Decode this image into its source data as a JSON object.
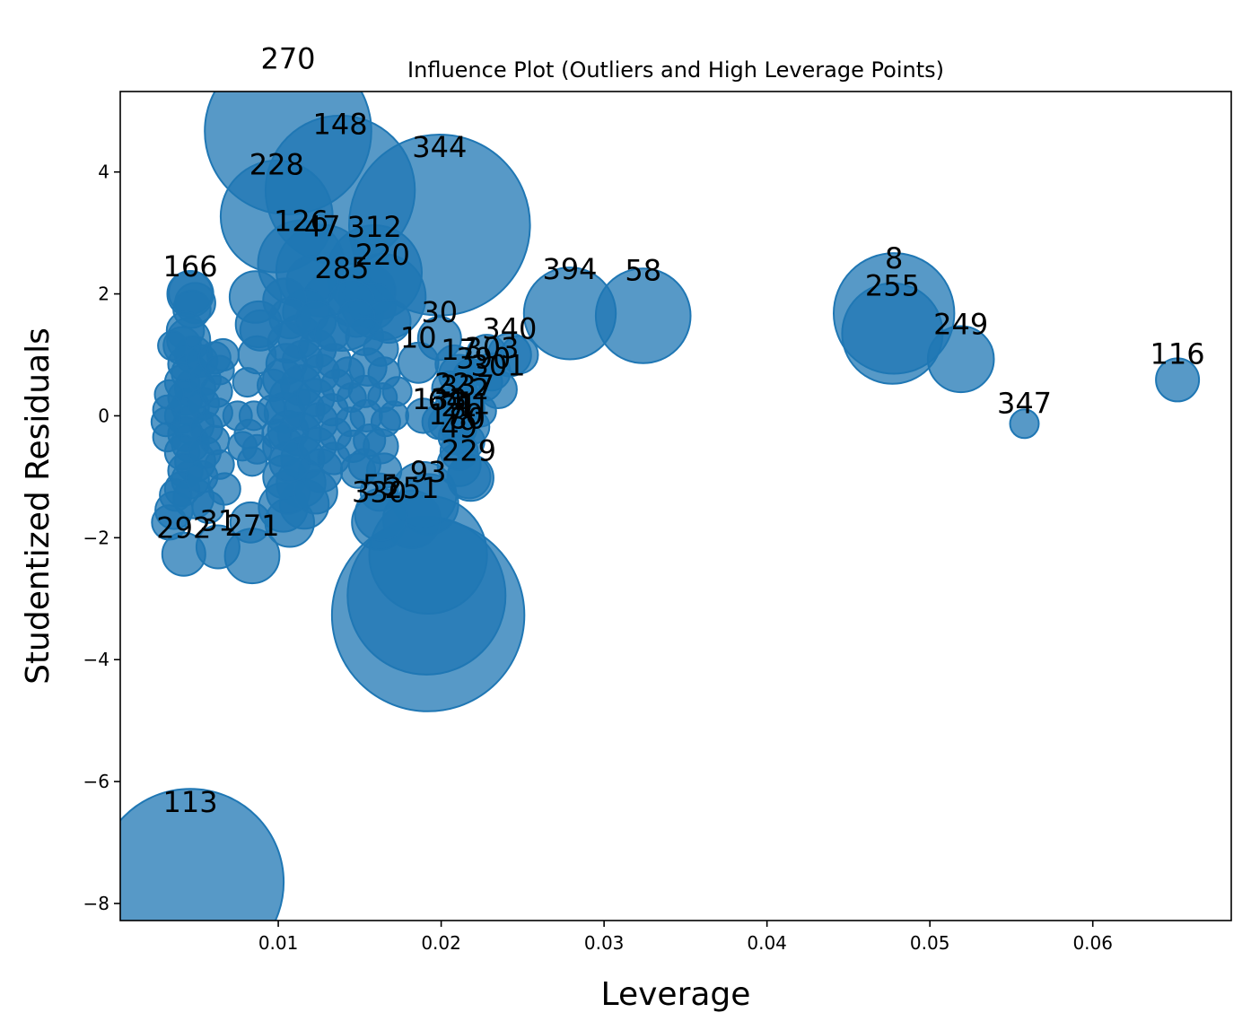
{
  "chart_data": {
    "type": "scatter",
    "title": "Influence Plot (Outliers and High Leverage Points)",
    "xlabel": "Leverage",
    "ylabel": "Studentized Residuals",
    "xlim": [
      0.0003,
      0.0685
    ],
    "ylim": [
      -8.28,
      5.32
    ],
    "xticks": [
      0.01,
      0.02,
      0.03,
      0.04,
      0.05,
      0.06
    ],
    "yticks": [
      -8,
      -6,
      -4,
      -2,
      0,
      2,
      4
    ],
    "xtick_labels": [
      "0.01",
      "0.02",
      "0.03",
      "0.04",
      "0.05",
      "0.06"
    ],
    "ytick_labels": [
      "−8",
      "−6",
      "−4",
      "−2",
      "0",
      "2",
      "4"
    ],
    "grid": false,
    "color": "#1f77b4",
    "labeled_points": [
      {
        "label": "270",
        "x": 0.0106,
        "y": 4.67,
        "size": 0.53
      },
      {
        "label": "148",
        "x": 0.0138,
        "y": 3.7,
        "size": 0.47
      },
      {
        "label": "344",
        "x": 0.0199,
        "y": 3.13,
        "size": 0.58
      },
      {
        "label": "228",
        "x": 0.0099,
        "y": 3.27,
        "size": 0.34
      },
      {
        "label": "126",
        "x": 0.0114,
        "y": 2.5,
        "size": 0.25
      },
      {
        "label": "47",
        "x": 0.0127,
        "y": 2.38,
        "size": 0.27
      },
      {
        "label": "312",
        "x": 0.0159,
        "y": 2.35,
        "size": 0.28
      },
      {
        "label": "220",
        "x": 0.0164,
        "y": 1.95,
        "size": 0.25
      },
      {
        "label": "285",
        "x": 0.0139,
        "y": 1.75,
        "size": 0.24
      },
      {
        "label": "166",
        "x": 0.0046,
        "y": 2.02,
        "size": 0.1
      },
      {
        "label": "394",
        "x": 0.0279,
        "y": 1.68,
        "size": 0.27
      },
      {
        "label": "58",
        "x": 0.0324,
        "y": 1.64,
        "size": 0.28
      },
      {
        "label": "8",
        "x": 0.0478,
        "y": 1.68,
        "size": 0.37
      },
      {
        "label": "255",
        "x": 0.0477,
        "y": 1.35,
        "size": 0.3
      },
      {
        "label": "249",
        "x": 0.0519,
        "y": 0.93,
        "size": 0.18
      },
      {
        "label": "116",
        "x": 0.0652,
        "y": 0.59,
        "size": 0.1
      },
      {
        "label": "347",
        "x": 0.0558,
        "y": -0.13,
        "size": 0.05
      },
      {
        "label": "30",
        "x": 0.0199,
        "y": 1.27,
        "size": 0.1
      },
      {
        "label": "340",
        "x": 0.0242,
        "y": 1.0,
        "size": 0.1
      },
      {
        "label": "10",
        "x": 0.0186,
        "y": 0.87,
        "size": 0.09
      },
      {
        "label": "17",
        "x": 0.0211,
        "y": 0.67,
        "size": 0.09
      },
      {
        "label": "303",
        "x": 0.0231,
        "y": 0.72,
        "size": 0.08
      },
      {
        "label": "390",
        "x": 0.0226,
        "y": 0.55,
        "size": 0.08
      },
      {
        "label": "301",
        "x": 0.0235,
        "y": 0.43,
        "size": 0.08
      },
      {
        "label": "22",
        "x": 0.0207,
        "y": 0.15,
        "size": 0.07
      },
      {
        "label": "337",
        "x": 0.0216,
        "y": 0.12,
        "size": 0.07
      },
      {
        "label": "2",
        "x": 0.0224,
        "y": 0.08,
        "size": 0.06
      },
      {
        "label": "133",
        "x": 0.0199,
        "y": -0.1,
        "size": 0.07
      },
      {
        "label": "64",
        "x": 0.0203,
        "y": -0.12,
        "size": 0.07
      },
      {
        "label": "21",
        "x": 0.0211,
        "y": -0.22,
        "size": 0.07
      },
      {
        "label": "41",
        "x": 0.0219,
        "y": -0.18,
        "size": 0.07
      },
      {
        "label": "170",
        "x": 0.0209,
        "y": -0.35,
        "size": 0.07
      },
      {
        "label": "80",
        "x": 0.0216,
        "y": -0.42,
        "size": 0.07
      },
      {
        "label": "49",
        "x": 0.0211,
        "y": -0.58,
        "size": 0.08
      },
      {
        "label": "229",
        "x": 0.0217,
        "y": -1.0,
        "size": 0.1
      },
      {
        "label": "93",
        "x": 0.0192,
        "y": -1.45,
        "size": 0.16
      },
      {
        "label": "55",
        "x": 0.0163,
        "y": -1.62,
        "size": 0.13
      },
      {
        "label": "251",
        "x": 0.0182,
        "y": -1.7,
        "size": 0.15
      },
      {
        "label": "330",
        "x": 0.0162,
        "y": -1.75,
        "size": 0.14
      },
      {
        "label": "31",
        "x": 0.0063,
        "y": -2.15,
        "size": 0.1
      },
      {
        "label": "271",
        "x": 0.0084,
        "y": -2.3,
        "size": 0.14
      },
      {
        "label": "292",
        "x": 0.0042,
        "y": -2.27,
        "size": 0.1
      },
      {
        "label": "113",
        "x": 0.0046,
        "y": -7.65,
        "size": 0.6
      }
    ],
    "unlabeled_points": [
      {
        "x": 0.0192,
        "y": -3.27,
        "size": 0.62
      },
      {
        "x": 0.0191,
        "y": -2.95,
        "size": 0.5
      },
      {
        "x": 0.0192,
        "y": -2.28,
        "size": 0.36
      },
      {
        "x": 0.0189,
        "y": -1.3,
        "size": 0.18
      },
      {
        "x": 0.0211,
        "y": -0.8,
        "size": 0.1
      },
      {
        "x": 0.0218,
        "y": -1.02,
        "size": 0.11
      },
      {
        "x": 0.0213,
        "y": 0.3,
        "size": 0.07
      },
      {
        "x": 0.0205,
        "y": 0.45,
        "size": 0.07
      },
      {
        "x": 0.0218,
        "y": 0.65,
        "size": 0.07
      },
      {
        "x": 0.0189,
        "y": 0.0,
        "size": 0.07
      },
      {
        "x": 0.0208,
        "y": 0.85,
        "size": 0.08
      },
      {
        "x": 0.0228,
        "y": 1.0,
        "size": 0.09
      },
      {
        "x": 0.0248,
        "y": 1.0,
        "size": 0.08
      },
      {
        "x": 0.0046,
        "y": 2.0,
        "size": 0.11
      },
      {
        "x": 0.0049,
        "y": 1.85,
        "size": 0.09
      },
      {
        "x": 0.0047,
        "y": 1.75,
        "size": 0.08
      },
      {
        "x": 0.0043,
        "y": 1.4,
        "size": 0.08
      },
      {
        "x": 0.0045,
        "y": 1.25,
        "size": 0.1
      },
      {
        "x": 0.0041,
        "y": 1.15,
        "size": 0.08
      },
      {
        "x": 0.0048,
        "y": 1.0,
        "size": 0.08
      },
      {
        "x": 0.0043,
        "y": 0.85,
        "size": 0.07
      },
      {
        "x": 0.0046,
        "y": 0.7,
        "size": 0.08
      },
      {
        "x": 0.0041,
        "y": 0.55,
        "size": 0.07
      },
      {
        "x": 0.0049,
        "y": 0.45,
        "size": 0.09
      },
      {
        "x": 0.0043,
        "y": 0.3,
        "size": 0.07
      },
      {
        "x": 0.0046,
        "y": 0.15,
        "size": 0.08
      },
      {
        "x": 0.0041,
        "y": 0.0,
        "size": 0.07
      },
      {
        "x": 0.0048,
        "y": -0.15,
        "size": 0.09
      },
      {
        "x": 0.0043,
        "y": -0.3,
        "size": 0.07
      },
      {
        "x": 0.0046,
        "y": -0.45,
        "size": 0.08
      },
      {
        "x": 0.0041,
        "y": -0.6,
        "size": 0.07
      },
      {
        "x": 0.0049,
        "y": -0.75,
        "size": 0.09
      },
      {
        "x": 0.0043,
        "y": -0.9,
        "size": 0.07
      },
      {
        "x": 0.0046,
        "y": -1.05,
        "size": 0.08
      },
      {
        "x": 0.0041,
        "y": -1.2,
        "size": 0.07
      },
      {
        "x": 0.0048,
        "y": -1.35,
        "size": 0.09
      },
      {
        "x": 0.0036,
        "y": -1.55,
        "size": 0.08
      },
      {
        "x": 0.0033,
        "y": -1.75,
        "size": 0.07
      },
      {
        "x": 0.0033,
        "y": 0.35,
        "size": 0.05
      },
      {
        "x": 0.0032,
        "y": 0.1,
        "size": 0.05
      },
      {
        "x": 0.0031,
        "y": -0.1,
        "size": 0.05
      },
      {
        "x": 0.0032,
        "y": -0.35,
        "size": 0.05
      },
      {
        "x": 0.0035,
        "y": 1.15,
        "size": 0.05
      },
      {
        "x": 0.0037,
        "y": -1.3,
        "size": 0.06
      },
      {
        "x": 0.0053,
        "y": 0.9,
        "size": 0.06
      },
      {
        "x": 0.0055,
        "y": 0.6,
        "size": 0.06
      },
      {
        "x": 0.0054,
        "y": 0.2,
        "size": 0.06
      },
      {
        "x": 0.0056,
        "y": -0.2,
        "size": 0.06
      },
      {
        "x": 0.0055,
        "y": -0.6,
        "size": 0.06
      },
      {
        "x": 0.0053,
        "y": -1.0,
        "size": 0.06
      },
      {
        "x": 0.0057,
        "y": -1.5,
        "size": 0.06
      },
      {
        "x": 0.0061,
        "y": 0.95,
        "size": 0.06
      },
      {
        "x": 0.0064,
        "y": 0.75,
        "size": 0.05
      },
      {
        "x": 0.0062,
        "y": 0.4,
        "size": 0.06
      },
      {
        "x": 0.0063,
        "y": 0.05,
        "size": 0.05
      },
      {
        "x": 0.0061,
        "y": -0.4,
        "size": 0.05
      },
      {
        "x": 0.0064,
        "y": -0.8,
        "size": 0.05
      },
      {
        "x": 0.0066,
        "y": 1.0,
        "size": 0.06
      },
      {
        "x": 0.0067,
        "y": -1.2,
        "size": 0.06
      },
      {
        "x": 0.0075,
        "y": 0.0,
        "size": 0.05
      },
      {
        "x": 0.0078,
        "y": -0.5,
        "size": 0.05
      },
      {
        "x": 0.0082,
        "y": -0.3,
        "size": 0.05
      },
      {
        "x": 0.0081,
        "y": 0.55,
        "size": 0.05
      },
      {
        "x": 0.0084,
        "y": -0.75,
        "size": 0.05
      },
      {
        "x": 0.0085,
        "y": 0.0,
        "size": 0.05
      },
      {
        "x": 0.0087,
        "y": -0.55,
        "size": 0.05
      },
      {
        "x": 0.0086,
        "y": 1.95,
        "size": 0.13
      },
      {
        "x": 0.0088,
        "y": 1.5,
        "size": 0.11
      },
      {
        "x": 0.0089,
        "y": 1.4,
        "size": 0.09
      },
      {
        "x": 0.0087,
        "y": 1.0,
        "size": 0.08
      },
      {
        "x": 0.0083,
        "y": -1.75,
        "size": 0.09
      },
      {
        "x": 0.0097,
        "y": 0.5,
        "size": 0.06
      },
      {
        "x": 0.0096,
        "y": 0.1,
        "size": 0.05
      },
      {
        "x": 0.0099,
        "y": -0.3,
        "size": 0.05
      },
      {
        "x": 0.0104,
        "y": 1.9,
        "size": 0.1
      },
      {
        "x": 0.0107,
        "y": 1.6,
        "size": 0.09
      },
      {
        "x": 0.0106,
        "y": 1.2,
        "size": 0.09
      },
      {
        "x": 0.0105,
        "y": 0.85,
        "size": 0.09
      },
      {
        "x": 0.0103,
        "y": 0.6,
        "size": 0.09
      },
      {
        "x": 0.0107,
        "y": 0.3,
        "size": 0.09
      },
      {
        "x": 0.0104,
        "y": 0.05,
        "size": 0.09
      },
      {
        "x": 0.0106,
        "y": -0.25,
        "size": 0.09
      },
      {
        "x": 0.0103,
        "y": -0.5,
        "size": 0.09
      },
      {
        "x": 0.0107,
        "y": -0.75,
        "size": 0.09
      },
      {
        "x": 0.0104,
        "y": -1.0,
        "size": 0.1
      },
      {
        "x": 0.0106,
        "y": -1.25,
        "size": 0.1
      },
      {
        "x": 0.0103,
        "y": -1.5,
        "size": 0.12
      },
      {
        "x": 0.0107,
        "y": -1.75,
        "size": 0.12
      },
      {
        "x": 0.0113,
        "y": 1.3,
        "size": 0.1
      },
      {
        "x": 0.0115,
        "y": 0.9,
        "size": 0.09
      },
      {
        "x": 0.0114,
        "y": 0.5,
        "size": 0.09
      },
      {
        "x": 0.0116,
        "y": 0.1,
        "size": 0.09
      },
      {
        "x": 0.0113,
        "y": -0.3,
        "size": 0.1
      },
      {
        "x": 0.0115,
        "y": -0.7,
        "size": 0.1
      },
      {
        "x": 0.0114,
        "y": -1.1,
        "size": 0.12
      },
      {
        "x": 0.0116,
        "y": -1.45,
        "size": 0.12
      },
      {
        "x": 0.0123,
        "y": 1.55,
        "size": 0.09
      },
      {
        "x": 0.0124,
        "y": 1.1,
        "size": 0.08
      },
      {
        "x": 0.0126,
        "y": 0.7,
        "size": 0.08
      },
      {
        "x": 0.0123,
        "y": 0.3,
        "size": 0.08
      },
      {
        "x": 0.0125,
        "y": -0.1,
        "size": 0.08
      },
      {
        "x": 0.0124,
        "y": -0.5,
        "size": 0.08
      },
      {
        "x": 0.0126,
        "y": -0.9,
        "size": 0.1
      },
      {
        "x": 0.0123,
        "y": -1.25,
        "size": 0.1
      },
      {
        "x": 0.0133,
        "y": 1.35,
        "size": 0.07
      },
      {
        "x": 0.0134,
        "y": 0.9,
        "size": 0.07
      },
      {
        "x": 0.0136,
        "y": 0.5,
        "size": 0.06
      },
      {
        "x": 0.0133,
        "y": 0.1,
        "size": 0.06
      },
      {
        "x": 0.0135,
        "y": -0.3,
        "size": 0.06
      },
      {
        "x": 0.0134,
        "y": -0.7,
        "size": 0.06
      },
      {
        "x": 0.0143,
        "y": 0.7,
        "size": 0.06
      },
      {
        "x": 0.0145,
        "y": 0.3,
        "size": 0.05
      },
      {
        "x": 0.0144,
        "y": -0.1,
        "size": 0.05
      },
      {
        "x": 0.0146,
        "y": -0.5,
        "size": 0.06
      },
      {
        "x": 0.0148,
        "y": 1.6,
        "size": 0.08
      },
      {
        "x": 0.0153,
        "y": 1.3,
        "size": 0.08
      },
      {
        "x": 0.0155,
        "y": 0.8,
        "size": 0.08
      },
      {
        "x": 0.0153,
        "y": 0.4,
        "size": 0.06
      },
      {
        "x": 0.0154,
        "y": 0.0,
        "size": 0.06
      },
      {
        "x": 0.0156,
        "y": -0.4,
        "size": 0.06
      },
      {
        "x": 0.0153,
        "y": -0.8,
        "size": 0.06
      },
      {
        "x": 0.0149,
        "y": -0.9,
        "size": 0.07
      },
      {
        "x": 0.0163,
        "y": 1.1,
        "size": 0.07
      },
      {
        "x": 0.0165,
        "y": 0.7,
        "size": 0.06
      },
      {
        "x": 0.0164,
        "y": 0.3,
        "size": 0.05
      },
      {
        "x": 0.0166,
        "y": -0.1,
        "size": 0.05
      },
      {
        "x": 0.0163,
        "y": -0.5,
        "size": 0.07
      },
      {
        "x": 0.0165,
        "y": -0.9,
        "size": 0.07
      },
      {
        "x": 0.0162,
        "y": -1.25,
        "size": 0.08
      },
      {
        "x": 0.0173,
        "y": 0.4,
        "size": 0.05
      },
      {
        "x": 0.0171,
        "y": 0.0,
        "size": 0.05
      },
      {
        "x": 0.0168,
        "y": 1.55,
        "size": 0.1
      },
      {
        "x": 0.0158,
        "y": 1.8,
        "size": 0.11
      },
      {
        "x": 0.0156,
        "y": 2.05,
        "size": 0.13
      },
      {
        "x": 0.0145,
        "y": 1.85,
        "size": 0.11
      },
      {
        "x": 0.0117,
        "y": 1.7,
        "size": 0.11
      },
      {
        "x": 0.0121,
        "y": 2.2,
        "size": 0.13
      }
    ]
  }
}
